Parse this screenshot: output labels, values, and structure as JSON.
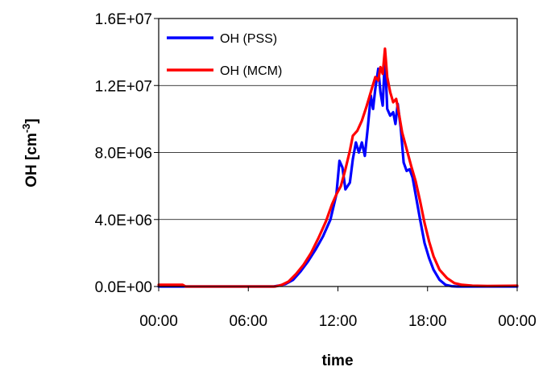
{
  "chart_data": {
    "type": "line",
    "xlabel": "time",
    "ylabel": "OH [cm",
    "ylabel_sup": "-3",
    "ylabel_end": "]",
    "ylim": [
      0,
      16000000
    ],
    "xlim": [
      0,
      24
    ],
    "y_ticks": [
      0,
      4000000,
      8000000,
      12000000,
      16000000
    ],
    "y_tick_labels": [
      "0.0E+00",
      "4.0E+06",
      "8.0E+06",
      "1.2E+07",
      "1.6E+07"
    ],
    "x_ticks": [
      0,
      6,
      12,
      18,
      24
    ],
    "x_tick_labels": [
      "00:00",
      "06:00",
      "12:00",
      "18:00",
      "00:00"
    ],
    "grid": "horizontal",
    "legend_position": "top-left",
    "series": [
      {
        "name": "OH (PSS)",
        "color": "#0000ff",
        "points": [
          [
            0,
            0
          ],
          [
            7.7,
            0
          ],
          [
            8.0,
            50000
          ],
          [
            8.5,
            150000
          ],
          [
            9.0,
            400000
          ],
          [
            9.5,
            900000
          ],
          [
            10.0,
            1500000
          ],
          [
            10.5,
            2200000
          ],
          [
            11.0,
            3000000
          ],
          [
            11.5,
            4000000
          ],
          [
            11.9,
            5500000
          ],
          [
            12.1,
            7500000
          ],
          [
            12.3,
            7100000
          ],
          [
            12.5,
            5800000
          ],
          [
            12.8,
            6200000
          ],
          [
            13.0,
            7600000
          ],
          [
            13.2,
            8600000
          ],
          [
            13.4,
            8000000
          ],
          [
            13.6,
            8600000
          ],
          [
            13.8,
            7800000
          ],
          [
            14.0,
            9500000
          ],
          [
            14.2,
            11400000
          ],
          [
            14.35,
            10600000
          ],
          [
            14.5,
            11800000
          ],
          [
            14.7,
            13000000
          ],
          [
            14.85,
            11600000
          ],
          [
            15.0,
            10800000
          ],
          [
            15.15,
            13800000
          ],
          [
            15.3,
            10600000
          ],
          [
            15.5,
            10200000
          ],
          [
            15.7,
            10400000
          ],
          [
            15.85,
            9700000
          ],
          [
            16.0,
            10900000
          ],
          [
            16.2,
            9500000
          ],
          [
            16.4,
            7400000
          ],
          [
            16.6,
            6900000
          ],
          [
            16.8,
            7000000
          ],
          [
            17.0,
            6500000
          ],
          [
            17.2,
            5500000
          ],
          [
            17.5,
            4000000
          ],
          [
            17.8,
            2600000
          ],
          [
            18.1,
            1700000
          ],
          [
            18.4,
            1000000
          ],
          [
            18.8,
            400000
          ],
          [
            19.2,
            100000
          ],
          [
            19.6,
            20000
          ],
          [
            20.0,
            0
          ],
          [
            24,
            0
          ]
        ]
      },
      {
        "name": "OH (MCM)",
        "color": "#ff0000",
        "points": [
          [
            0,
            100000
          ],
          [
            1.6,
            100000
          ],
          [
            1.8,
            0
          ],
          [
            7.8,
            0
          ],
          [
            8.2,
            80000
          ],
          [
            8.7,
            300000
          ],
          [
            9.2,
            750000
          ],
          [
            9.7,
            1300000
          ],
          [
            10.2,
            2000000
          ],
          [
            10.7,
            2900000
          ],
          [
            11.2,
            3900000
          ],
          [
            11.6,
            4900000
          ],
          [
            11.9,
            5500000
          ],
          [
            12.2,
            6000000
          ],
          [
            12.5,
            7000000
          ],
          [
            12.8,
            8100000
          ],
          [
            13.0,
            9000000
          ],
          [
            13.3,
            9300000
          ],
          [
            13.6,
            9900000
          ],
          [
            13.9,
            10700000
          ],
          [
            14.1,
            11300000
          ],
          [
            14.3,
            11900000
          ],
          [
            14.5,
            12500000
          ],
          [
            14.7,
            12300000
          ],
          [
            14.85,
            13100000
          ],
          [
            15.0,
            12700000
          ],
          [
            15.15,
            14200000
          ],
          [
            15.3,
            12500000
          ],
          [
            15.5,
            11600000
          ],
          [
            15.7,
            11000000
          ],
          [
            15.9,
            11200000
          ],
          [
            16.05,
            10500000
          ],
          [
            16.3,
            9200000
          ],
          [
            16.6,
            8200000
          ],
          [
            16.9,
            7200000
          ],
          [
            17.2,
            6300000
          ],
          [
            17.5,
            5100000
          ],
          [
            17.8,
            3800000
          ],
          [
            18.1,
            2700000
          ],
          [
            18.4,
            1800000
          ],
          [
            18.8,
            1000000
          ],
          [
            19.3,
            500000
          ],
          [
            19.8,
            200000
          ],
          [
            20.3,
            100000
          ],
          [
            21.0,
            50000
          ],
          [
            22.0,
            30000
          ],
          [
            24,
            50000
          ]
        ]
      }
    ]
  }
}
